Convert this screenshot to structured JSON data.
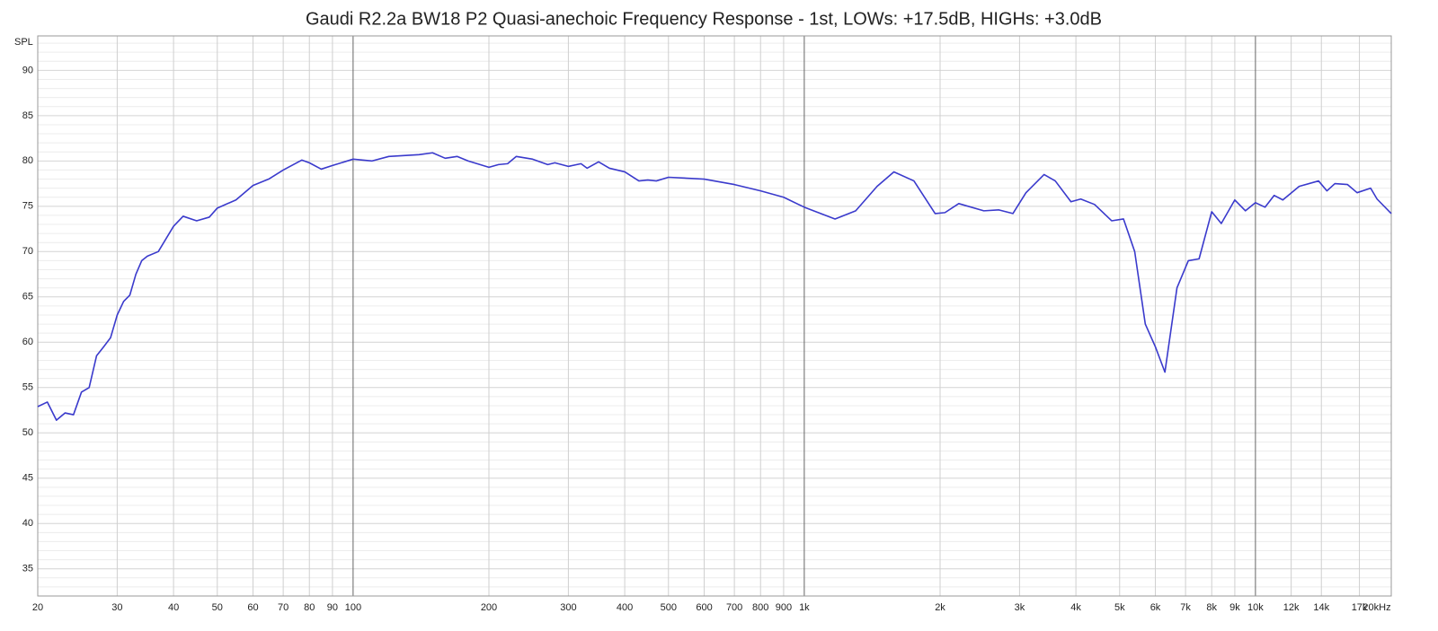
{
  "chart_data": {
    "type": "line",
    "title": "Gaudi R2.2a BW18 P2 Quasi-anechoic Frequency Response - 1st, LOWs: +17.5dB, HIGHs: +3.0dB",
    "y_label": "SPL",
    "log_x": true,
    "grid": true,
    "color": "#3a3acc",
    "xlim": [
      20,
      20000
    ],
    "ylim": [
      32,
      93.8
    ],
    "yticks": [
      35,
      40,
      45,
      50,
      55,
      60,
      65,
      70,
      75,
      80,
      85,
      90
    ],
    "xticks": [
      20,
      30,
      40,
      50,
      60,
      70,
      80,
      90,
      100,
      200,
      300,
      400,
      500,
      600,
      700,
      800,
      900,
      {
        "value": 1000,
        "label": "1k"
      },
      {
        "value": 2000,
        "label": "2k"
      },
      {
        "value": 3000,
        "label": "3k"
      },
      {
        "value": 4000,
        "label": "4k"
      },
      {
        "value": 5000,
        "label": "5k"
      },
      {
        "value": 6000,
        "label": "6k"
      },
      {
        "value": 7000,
        "label": "7k"
      },
      {
        "value": 8000,
        "label": "8k"
      },
      {
        "value": 9000,
        "label": "9k"
      },
      {
        "value": 10000,
        "label": "10k"
      },
      {
        "value": 12000,
        "label": "12k"
      },
      {
        "value": 14000,
        "label": "14k"
      },
      {
        "value": 17000,
        "label": "17k"
      },
      {
        "value": 20000,
        "label": "20kHz"
      }
    ],
    "x": [
      20,
      21,
      22,
      23,
      24,
      25,
      26,
      27,
      28,
      29,
      30,
      31,
      32,
      33,
      34,
      35,
      37,
      40,
      42,
      45,
      48,
      50,
      55,
      60,
      65,
      70,
      77,
      80,
      85,
      90,
      100,
      110,
      120,
      140,
      150,
      160,
      170,
      180,
      200,
      210,
      220,
      230,
      250,
      270,
      280,
      300,
      320,
      330,
      350,
      370,
      400,
      430,
      450,
      470,
      500,
      600,
      700,
      800,
      900,
      1000,
      1170,
      1300,
      1450,
      1580,
      1750,
      1950,
      2050,
      2200,
      2500,
      2700,
      2900,
      3100,
      3400,
      3600,
      3900,
      4100,
      4400,
      4800,
      5100,
      5400,
      5700,
      6000,
      6300,
      6700,
      7100,
      7500,
      8000,
      8400,
      9000,
      9500,
      10000,
      10500,
      11000,
      11500,
      12500,
      13800,
      14400,
      15000,
      16000,
      16800,
      18000,
      18600,
      20000
    ],
    "values": [
      52.9,
      53.4,
      51.4,
      52.2,
      52.0,
      54.5,
      55.0,
      58.5,
      59.5,
      60.5,
      63,
      64.5,
      65.2,
      67.5,
      69.0,
      69.5,
      70.0,
      72.8,
      73.9,
      73.4,
      73.8,
      74.8,
      75.7,
      77.3,
      78.0,
      79.0,
      80.1,
      79.8,
      79.1,
      79.5,
      80.2,
      80.0,
      80.5,
      80.7,
      80.9,
      80.3,
      80.5,
      80.0,
      79.3,
      79.6,
      79.7,
      80.5,
      80.2,
      79.6,
      79.8,
      79.4,
      79.7,
      79.2,
      79.9,
      79.2,
      78.8,
      77.8,
      77.9,
      77.8,
      78.2,
      78.0,
      77.4,
      76.7,
      76.0,
      74.9,
      73.6,
      74.5,
      77.2,
      78.8,
      77.8,
      74.2,
      74.3,
      75.3,
      74.5,
      74.6,
      74.2,
      76.5,
      78.5,
      77.8,
      75.5,
      75.8,
      75.2,
      73.4,
      73.6,
      70,
      62,
      59.5,
      56.7,
      66,
      69.0,
      69.2,
      74.4,
      73.1,
      75.7,
      74.5,
      75.4,
      74.9,
      76.2,
      75.7,
      77.2,
      77.8,
      76.7,
      77.5,
      77.4,
      76.5,
      77.0,
      75.8,
      74.2
    ]
  }
}
